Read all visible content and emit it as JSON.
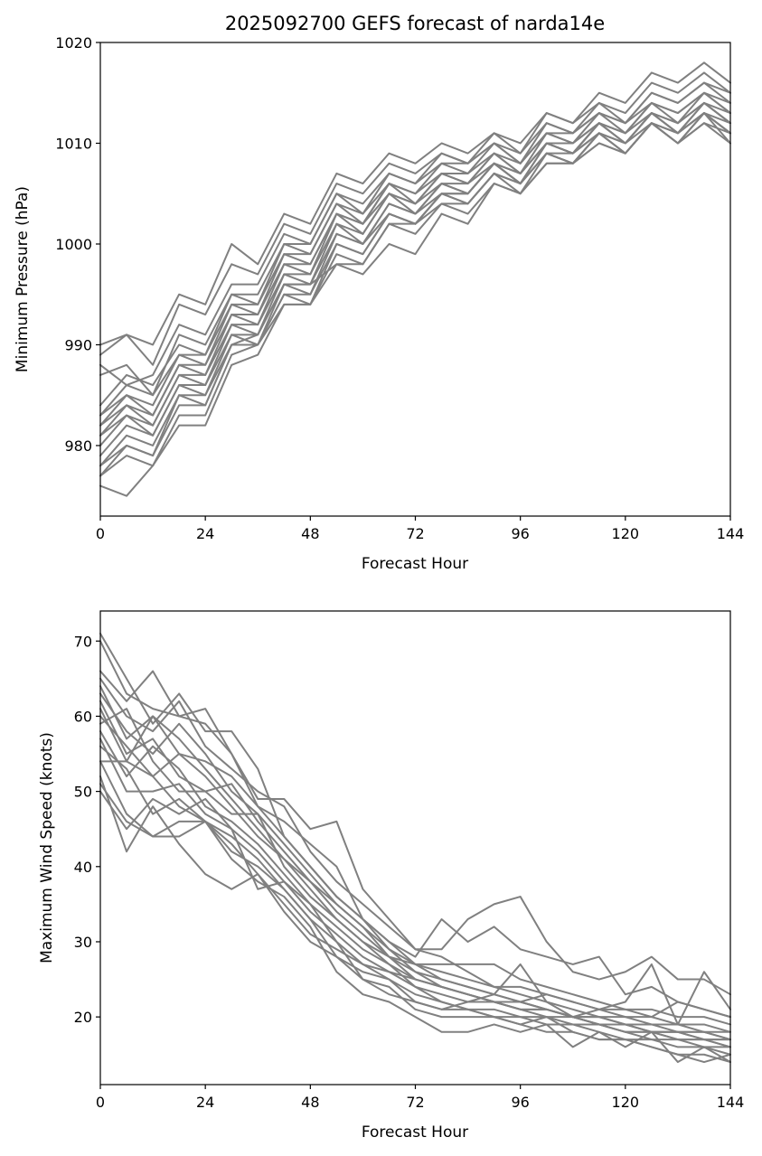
{
  "chart_data": [
    {
      "type": "line",
      "title": "2025092700 GEFS forecast of narda14e",
      "xlabel": "Forecast Hour",
      "ylabel": "Minimum Pressure (hPa)",
      "xlim": [
        0,
        144
      ],
      "ylim": [
        973,
        1020
      ],
      "xticks": [
        0,
        24,
        48,
        72,
        96,
        120,
        144
      ],
      "yticks": [
        980,
        990,
        1000,
        1010,
        1020
      ],
      "grid": false,
      "line_color": "#808080",
      "x": [
        0,
        6,
        12,
        18,
        24,
        30,
        36,
        42,
        48,
        54,
        60,
        66,
        72,
        78,
        84,
        90,
        96,
        102,
        108,
        114,
        120,
        126,
        132,
        138,
        144
      ],
      "series": [
        {
          "values": [
            990,
            991,
            990,
            995,
            994,
            1000,
            998,
            1003,
            1002,
            1007,
            1006,
            1009,
            1008,
            1010,
            1009,
            1011,
            1010,
            1013,
            1012,
            1015,
            1014,
            1017,
            1016,
            1018,
            1016
          ]
        },
        {
          "values": [
            989,
            991,
            988,
            994,
            993,
            998,
            997,
            1002,
            1001,
            1006,
            1005,
            1008,
            1007,
            1009,
            1008,
            1011,
            1009,
            1013,
            1012,
            1014,
            1013,
            1016,
            1015,
            1017,
            1015
          ]
        },
        {
          "values": [
            988,
            986,
            987,
            992,
            991,
            996,
            996,
            1001,
            1000,
            1005,
            1004,
            1007,
            1006,
            1009,
            1008,
            1010,
            1009,
            1012,
            1011,
            1014,
            1012,
            1015,
            1014,
            1016,
            1015
          ]
        },
        {
          "values": [
            987,
            988,
            985,
            991,
            990,
            995,
            995,
            1000,
            1000,
            1005,
            1003,
            1007,
            1006,
            1008,
            1008,
            1010,
            1008,
            1012,
            1011,
            1013,
            1012,
            1015,
            1014,
            1016,
            1014
          ]
        },
        {
          "values": [
            984,
            987,
            986,
            990,
            989,
            995,
            994,
            1000,
            999,
            1004,
            1003,
            1006,
            1005,
            1008,
            1007,
            1010,
            1008,
            1011,
            1011,
            1013,
            1012,
            1014,
            1013,
            1015,
            1014
          ]
        },
        {
          "values": [
            983,
            986,
            985,
            989,
            989,
            994,
            994,
            999,
            999,
            1004,
            1002,
            1006,
            1005,
            1007,
            1007,
            1009,
            1008,
            1011,
            1010,
            1013,
            1011,
            1014,
            1013,
            1015,
            1013
          ]
        },
        {
          "values": [
            983,
            985,
            984,
            989,
            988,
            994,
            993,
            999,
            998,
            1003,
            1002,
            1006,
            1004,
            1007,
            1006,
            1009,
            1007,
            1011,
            1010,
            1012,
            1011,
            1014,
            1012,
            1015,
            1013
          ]
        },
        {
          "values": [
            982,
            985,
            983,
            988,
            988,
            993,
            993,
            998,
            998,
            1003,
            1002,
            1005,
            1004,
            1007,
            1006,
            1009,
            1007,
            1010,
            1010,
            1012,
            1011,
            1013,
            1012,
            1014,
            1013
          ]
        },
        {
          "values": [
            982,
            984,
            983,
            988,
            987,
            993,
            992,
            998,
            997,
            1003,
            1001,
            1005,
            1004,
            1006,
            1006,
            1008,
            1007,
            1010,
            1009,
            1012,
            1010,
            1013,
            1012,
            1014,
            1012
          ]
        },
        {
          "values": [
            981,
            984,
            982,
            987,
            987,
            992,
            992,
            997,
            997,
            1002,
            1001,
            1005,
            1003,
            1006,
            1005,
            1008,
            1007,
            1010,
            1009,
            1012,
            1010,
            1013,
            1011,
            1014,
            1012
          ]
        },
        {
          "values": [
            981,
            983,
            982,
            987,
            986,
            992,
            991,
            997,
            996,
            1002,
            1000,
            1004,
            1003,
            1006,
            1005,
            1008,
            1006,
            1010,
            1009,
            1011,
            1010,
            1013,
            1011,
            1014,
            1012
          ]
        },
        {
          "values": [
            980,
            983,
            981,
            986,
            986,
            991,
            991,
            996,
            996,
            1001,
            1000,
            1004,
            1003,
            1005,
            1005,
            1008,
            1006,
            1009,
            1009,
            1011,
            1010,
            1012,
            1011,
            1013,
            1011
          ]
        },
        {
          "values": [
            979,
            982,
            981,
            986,
            985,
            991,
            990,
            996,
            995,
            1001,
            1000,
            1003,
            1002,
            1005,
            1004,
            1007,
            1006,
            1009,
            1008,
            1011,
            1009,
            1012,
            1011,
            1013,
            1011
          ]
        },
        {
          "values": [
            978,
            981,
            980,
            985,
            985,
            990,
            990,
            995,
            995,
            1000,
            999,
            1003,
            1002,
            1005,
            1004,
            1007,
            1006,
            1009,
            1008,
            1011,
            1009,
            1012,
            1010,
            1013,
            1011
          ]
        },
        {
          "values": [
            978,
            980,
            979,
            985,
            984,
            990,
            990,
            995,
            994,
            1000,
            999,
            1003,
            1002,
            1004,
            1004,
            1007,
            1005,
            1009,
            1008,
            1010,
            1009,
            1012,
            1010,
            1013,
            1010
          ]
        },
        {
          "values": [
            977,
            979,
            978,
            983,
            983,
            989,
            990,
            994,
            994,
            999,
            998,
            1002,
            1001,
            1004,
            1003,
            1006,
            1005,
            1008,
            1008,
            1010,
            1009,
            1012,
            1010,
            1012,
            1010
          ]
        },
        {
          "values": [
            976,
            975,
            978,
            982,
            982,
            988,
            989,
            994,
            994,
            998,
            997,
            1000,
            999,
            1003,
            1002,
            1006,
            1005,
            1008,
            1008,
            1011,
            1009,
            1012,
            1010,
            1012,
            1011
          ]
        },
        {
          "values": [
            977,
            980,
            979,
            984,
            984,
            990,
            991,
            996,
            996,
            998,
            998,
            1002,
            1002,
            1005,
            1005,
            1008,
            1006,
            1010,
            1009,
            1012,
            1010,
            1013,
            1011,
            1013,
            1012
          ]
        }
      ]
    },
    {
      "type": "line",
      "title": "",
      "xlabel": "Forecast Hour",
      "ylabel": "Maximum Wind Speed (knots)",
      "xlim": [
        0,
        144
      ],
      "ylim": [
        11,
        74
      ],
      "xticks": [
        0,
        24,
        48,
        72,
        96,
        120,
        144
      ],
      "yticks": [
        20,
        30,
        40,
        50,
        60,
        70
      ],
      "grid": false,
      "line_color": "#808080",
      "x": [
        0,
        6,
        12,
        18,
        24,
        30,
        36,
        42,
        48,
        54,
        60,
        66,
        72,
        78,
        84,
        90,
        96,
        102,
        108,
        114,
        120,
        126,
        132,
        138,
        144
      ],
      "series": [
        {
          "values": [
            71,
            65,
            59,
            63,
            58,
            58,
            53,
            44,
            40,
            36,
            33,
            29,
            27,
            27,
            27,
            27,
            25,
            24,
            23,
            22,
            21,
            21,
            20,
            20,
            19
          ]
        },
        {
          "values": [
            70,
            63,
            61,
            60,
            61,
            55,
            49,
            49,
            45,
            46,
            37,
            33,
            29,
            29,
            33,
            35,
            36,
            30,
            26,
            25,
            26,
            28,
            25,
            25,
            23
          ]
        },
        {
          "values": [
            66,
            62,
            66,
            60,
            59,
            55,
            48,
            46,
            43,
            40,
            33,
            30,
            28,
            33,
            30,
            32,
            29,
            28,
            27,
            28,
            23,
            24,
            22,
            21,
            20
          ]
        },
        {
          "values": [
            65,
            60,
            58,
            62,
            56,
            53,
            50,
            48,
            42,
            38,
            35,
            32,
            29,
            28,
            26,
            24,
            23,
            22,
            21,
            20,
            20,
            19,
            19,
            18,
            18
          ]
        },
        {
          "values": [
            64,
            57,
            60,
            55,
            54,
            52,
            48,
            44,
            40,
            36,
            33,
            30,
            27,
            25,
            24,
            23,
            22,
            21,
            20,
            20,
            19,
            19,
            18,
            18,
            17
          ]
        },
        {
          "values": [
            63,
            58,
            55,
            59,
            55,
            50,
            47,
            43,
            39,
            35,
            32,
            29,
            26,
            25,
            24,
            23,
            22,
            21,
            20,
            19,
            19,
            18,
            18,
            17,
            17
          ]
        },
        {
          "values": [
            62,
            55,
            57,
            52,
            50,
            51,
            46,
            42,
            38,
            34,
            31,
            28,
            26,
            24,
            23,
            22,
            21,
            21,
            20,
            19,
            18,
            18,
            17,
            17,
            16
          ]
        },
        {
          "values": [
            61,
            54,
            60,
            57,
            53,
            49,
            45,
            41,
            38,
            35,
            32,
            28,
            27,
            26,
            25,
            24,
            24,
            23,
            22,
            21,
            20,
            20,
            19,
            19,
            18
          ]
        },
        {
          "values": [
            60,
            56,
            52,
            55,
            52,
            48,
            44,
            41,
            37,
            33,
            30,
            28,
            25,
            24,
            23,
            22,
            21,
            21,
            20,
            20,
            19,
            18,
            18,
            18,
            17
          ]
        },
        {
          "values": [
            59,
            61,
            54,
            50,
            50,
            47,
            47,
            40,
            36,
            33,
            30,
            27,
            25,
            24,
            23,
            22,
            22,
            21,
            20,
            19,
            19,
            18,
            18,
            17,
            17
          ]
        },
        {
          "values": [
            58,
            52,
            56,
            53,
            48,
            46,
            43,
            39,
            35,
            32,
            29,
            27,
            24,
            23,
            22,
            22,
            21,
            20,
            20,
            19,
            18,
            18,
            17,
            17,
            16
          ]
        },
        {
          "values": [
            57,
            50,
            50,
            51,
            47,
            45,
            42,
            38,
            34,
            31,
            28,
            26,
            24,
            22,
            21,
            21,
            20,
            20,
            19,
            19,
            18,
            17,
            17,
            16,
            16
          ]
        },
        {
          "values": [
            56,
            53,
            47,
            49,
            46,
            44,
            41,
            37,
            33,
            30,
            27,
            25,
            23,
            22,
            21,
            20,
            20,
            19,
            19,
            18,
            17,
            17,
            16,
            16,
            15
          ]
        },
        {
          "values": [
            54,
            54,
            52,
            48,
            46,
            42,
            40,
            37,
            33,
            28,
            26,
            25,
            22,
            21,
            21,
            20,
            19,
            20,
            18,
            17,
            17,
            16,
            15,
            14,
            15
          ]
        },
        {
          "values": [
            54,
            47,
            44,
            44,
            46,
            41,
            38,
            36,
            32,
            26,
            23,
            22,
            20,
            18,
            18,
            19,
            18,
            19,
            16,
            18,
            16,
            18,
            14,
            16,
            14
          ]
        },
        {
          "values": [
            52,
            42,
            48,
            43,
            39,
            37,
            39,
            34,
            30,
            28,
            25,
            24,
            21,
            20,
            20,
            20,
            19,
            18,
            18,
            17,
            17,
            16,
            15,
            15,
            14
          ]
        },
        {
          "values": [
            51,
            46,
            44,
            46,
            46,
            43,
            39,
            35,
            31,
            29,
            27,
            26,
            25,
            24,
            23,
            22,
            22,
            23,
            22,
            21,
            21,
            20,
            22,
            21,
            20
          ]
        },
        {
          "values": [
            50,
            45,
            49,
            47,
            49,
            45,
            37,
            38,
            35,
            30,
            25,
            23,
            22,
            21,
            22,
            23,
            27,
            22,
            20,
            21,
            22,
            27,
            19,
            26,
            21
          ]
        }
      ]
    }
  ]
}
